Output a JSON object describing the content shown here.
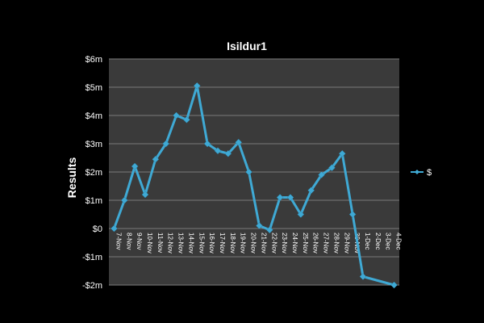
{
  "chart_data": {
    "type": "line",
    "title": "Isildur1",
    "xlabel": "",
    "ylabel": "Results",
    "categories": [
      "7-Nov",
      "8-Nov",
      "9-Nov",
      "10-Nov",
      "11-Nov",
      "12-Nov",
      "13-Nov",
      "14-Nov",
      "15-Nov",
      "16-Nov",
      "17-Nov",
      "18-Nov",
      "19-Nov",
      "20-Nov",
      "21-Nov",
      "22-Nov",
      "23-Nov",
      "24-Nov",
      "25-Nov",
      "26-Nov",
      "27-Nov",
      "28-Nov",
      "29-Nov",
      "30-Nov",
      "1-Dec",
      "2-Dec",
      "3-Dec",
      "4-Dec"
    ],
    "series": [
      {
        "name": "$",
        "color": "#3fa9d4",
        "points": [
          {
            "x": "7-Nov",
            "y": 0
          },
          {
            "x": "8-Nov",
            "y": 1.0
          },
          {
            "x": "9-Nov",
            "y": 2.2
          },
          {
            "x": "10-Nov",
            "y": 1.2
          },
          {
            "x": "11-Nov",
            "y": 2.45
          },
          {
            "x": "12-Nov",
            "y": 3.0
          },
          {
            "x": "13-Nov",
            "y": 4.0
          },
          {
            "x": "14-Nov",
            "y": 3.85
          },
          {
            "x": "15-Nov",
            "y": 5.05
          },
          {
            "x": "16-Nov",
            "y": 3.0
          },
          {
            "x": "17-Nov",
            "y": 2.75
          },
          {
            "x": "18-Nov",
            "y": 2.65
          },
          {
            "x": "19-Nov",
            "y": 3.05
          },
          {
            "x": "20-Nov",
            "y": 2.0
          },
          {
            "x": "21-Nov",
            "y": 0.1
          },
          {
            "x": "22-Nov",
            "y": -0.05
          },
          {
            "x": "23-Nov",
            "y": 1.1
          },
          {
            "x": "24-Nov",
            "y": 1.1
          },
          {
            "x": "25-Nov",
            "y": 0.5
          },
          {
            "x": "26-Nov",
            "y": 1.35
          },
          {
            "x": "27-Nov",
            "y": 1.9
          },
          {
            "x": "28-Nov",
            "y": 2.15
          },
          {
            "x": "29-Nov",
            "y": 2.65
          },
          {
            "x": "30-Nov",
            "y": 0.5
          },
          {
            "x": "1-Dec",
            "y": -1.7
          },
          {
            "x": "4-Dec",
            "y": -2.0
          }
        ]
      }
    ],
    "ylim": [
      -2,
      6
    ],
    "yticks": [
      -2,
      -1,
      0,
      1,
      2,
      3,
      4,
      5,
      6
    ],
    "ytick_labels": [
      "-$2m",
      "-$1m",
      "$0",
      "$1m",
      "$2m",
      "$3m",
      "$4m",
      "$5m",
      "$6m"
    ],
    "grid": true,
    "legend": {
      "position": "right",
      "entries": [
        "$"
      ]
    },
    "colors": {
      "page_background": "#000000",
      "plot_background": "#3a3a3a",
      "gridline": "#7a7a7a",
      "text": "#ffffff",
      "series": "#3fa9d4"
    }
  }
}
